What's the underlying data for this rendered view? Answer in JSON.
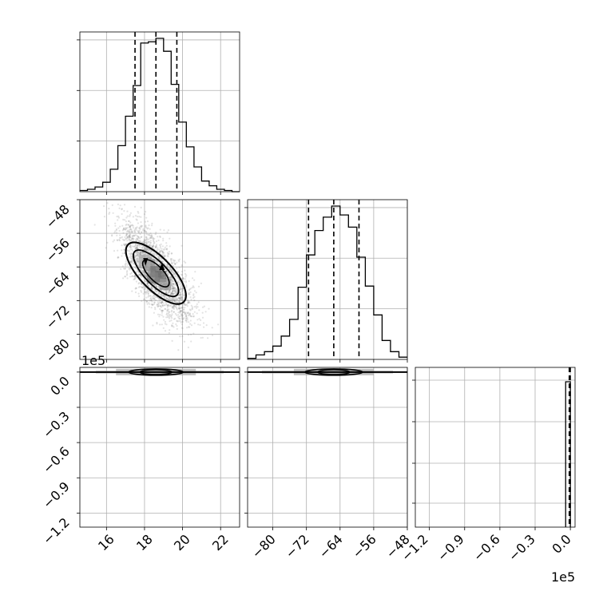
{
  "chart_data": {
    "type": "corner",
    "parameters": 3,
    "axes": {
      "p0": {
        "lim": [
          14.6,
          23.0
        ],
        "ticks": [
          16,
          18,
          20,
          22
        ],
        "tick_labels": [
          "16",
          "18",
          "20",
          "22"
        ]
      },
      "p1": {
        "lim": [
          -86,
          -48
        ],
        "ticks": [
          -80,
          -72,
          -64,
          -56,
          -48
        ],
        "tick_labels": [
          "−80",
          "−72",
          "−64",
          "−56",
          "−48"
        ]
      },
      "p2": {
        "lim": [
          -1.32,
          0.04
        ],
        "ticks": [
          -1.2,
          -0.9,
          -0.6,
          -0.3,
          0.0
        ],
        "tick_labels": [
          "−1.2",
          "−0.9",
          "−0.6",
          "−0.3",
          "0.0"
        ],
        "offset_label": "1e5"
      }
    },
    "grid": true,
    "histograms": [
      {
        "param": "p0",
        "bin_edges": [
          14.6,
          15.0,
          15.4,
          15.8,
          16.2,
          16.6,
          17.0,
          17.4,
          17.8,
          18.2,
          18.6,
          19.0,
          19.4,
          19.8,
          20.2,
          20.6,
          21.0,
          21.4,
          21.8,
          22.2,
          22.6,
          23.0
        ],
        "counts": [
          1,
          2,
          4,
          8,
          19,
          39,
          64,
          90,
          126,
          127,
          130,
          119,
          91,
          59,
          38,
          21,
          9,
          5,
          2,
          1,
          0
        ],
        "quantiles": [
          17.5,
          18.6,
          19.7
        ]
      },
      {
        "param": "p1",
        "bin_edges": [
          -86,
          -84,
          -82,
          -80,
          -78,
          -76,
          -74,
          -72,
          -70,
          -68,
          -66,
          -64,
          -62,
          -60,
          -58,
          -56,
          -54,
          -52,
          -50,
          -48
        ],
        "counts": [
          1,
          4,
          7,
          12,
          21,
          36,
          65,
          94,
          116,
          128,
          138,
          130,
          119,
          92,
          66,
          40,
          17,
          7,
          2
        ],
        "quantiles": [
          -71.5,
          -65.5,
          -59.5
        ]
      },
      {
        "param": "p2",
        "bin_edges": [
          -0.04,
          0.0
        ],
        "counts": [
          1
        ],
        "quantiles": [
          -0.01,
          -0.005,
          0.0
        ]
      }
    ],
    "density_panels": [
      {
        "x": "p0",
        "y": "p1",
        "center": [
          18.6,
          -65.5
        ],
        "orientation": "negative correlation",
        "contour_levels": 3
      },
      {
        "x": "p0",
        "y": "p2",
        "center": [
          18.6,
          0.0
        ],
        "orientation": "flat band at 0"
      },
      {
        "x": "p1",
        "y": "p2",
        "center": [
          -65.5,
          0.0
        ],
        "orientation": "flat band at 0"
      }
    ],
    "colors": {
      "line": "#000000",
      "grid": "#b0b0b0",
      "density": "#808080"
    }
  }
}
